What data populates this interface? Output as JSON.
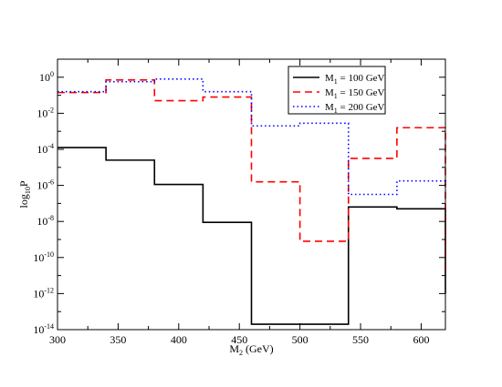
{
  "chart_data": {
    "type": "line",
    "xlabel": "M",
    "xlabel_sub": "2",
    "xlabel_unit": " (GeV)",
    "ylabel": "log",
    "ylabel_sub": "10",
    "ylabel_tail": "P",
    "xlim": [
      300,
      620
    ],
    "ylim_log10": [
      -14,
      1
    ],
    "log_y": true,
    "grid": false,
    "legend_position": "top-right",
    "x_ticks": [
      300,
      350,
      400,
      450,
      500,
      550,
      600
    ],
    "y_ticks": [
      {
        "mant": "10",
        "exp": "-14",
        "log": -14
      },
      {
        "mant": "10",
        "exp": "-12",
        "log": -12
      },
      {
        "mant": "10",
        "exp": "-10",
        "log": -10
      },
      {
        "mant": "10",
        "exp": "-8",
        "log": -8
      },
      {
        "mant": "10",
        "exp": "-6",
        "log": -6
      },
      {
        "mant": "10",
        "exp": "-4",
        "log": -4
      },
      {
        "mant": "10",
        "exp": "-2",
        "log": -2
      },
      {
        "mant": "10",
        "exp": "0",
        "log": 0
      }
    ],
    "bin_edges": [
      300,
      340,
      380,
      420,
      460,
      500,
      540,
      580,
      620
    ],
    "series": [
      {
        "name_main": "M",
        "name_sub": "1",
        "name_tail": " = 100 GeV",
        "color": "#000000",
        "dash": "solid",
        "log10_values": [
          -3.9,
          -4.6,
          -5.95,
          -8.05,
          -13.7,
          -13.7,
          -7.2,
          -7.3
        ],
        "right_drop_log10": -12
      },
      {
        "name_main": "M",
        "name_sub": "1",
        "name_tail": " = 150 GeV",
        "color": "#ff0000",
        "dash": "dashed",
        "log10_values": [
          -0.85,
          -0.15,
          -1.3,
          -1.1,
          -5.8,
          -9.1,
          -4.5,
          -2.8
        ],
        "right_drop_log10": -11
      },
      {
        "name_main": "M",
        "name_sub": "1",
        "name_tail": " = 200 GeV",
        "color": "#0000ff",
        "dash": "dotted",
        "log10_values": [
          -0.8,
          -0.25,
          -0.1,
          -0.8,
          -2.7,
          -2.55,
          -6.5,
          -5.75
        ],
        "right_drop_log10": -6.05
      }
    ]
  }
}
